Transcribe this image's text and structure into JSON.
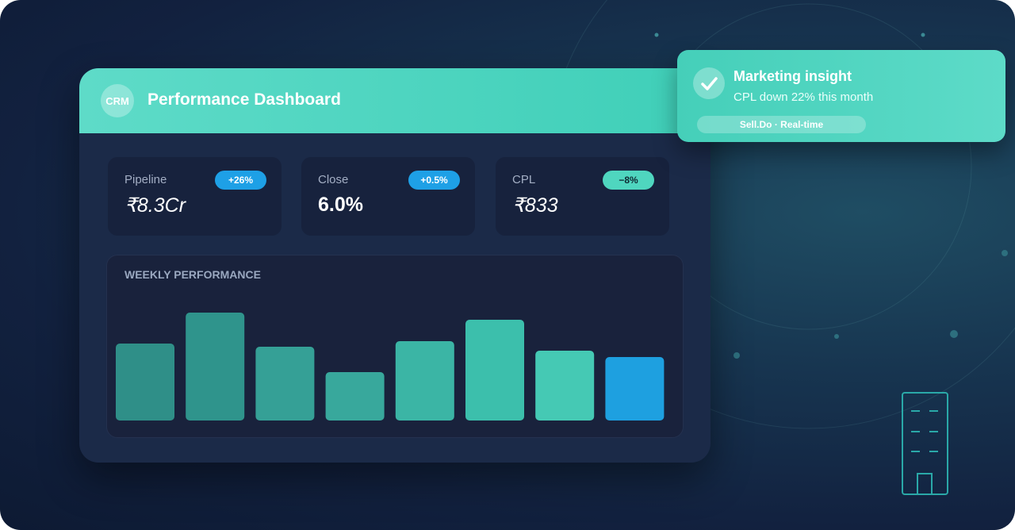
{
  "header": {
    "logo": "CRM",
    "title": "Performance Dashboard"
  },
  "kpis": [
    {
      "label": "Pipeline",
      "value": "₹8.3Cr",
      "badge": "+26%"
    },
    {
      "label": "Close",
      "value": "6.0%",
      "badge": "+0.5%"
    },
    {
      "label": "CPL",
      "value": "₹833",
      "badge": "−8%"
    }
  ],
  "chart_data": {
    "type": "bar",
    "title": "WEEKLY PERFORMANCE",
    "categories": [
      null,
      null,
      null,
      null,
      null,
      null,
      null,
      null
    ],
    "values": [
      97,
      136,
      93,
      61,
      100,
      127,
      88,
      80
    ],
    "colors": [
      "#2f8f88",
      "#2f948c",
      "#35a096",
      "#38a89c",
      "#3bb5a5",
      "#3cbfac",
      "#45c9b4",
      "#1ea0e0"
    ]
  },
  "notification": {
    "title": "Marketing insight",
    "text": "CPL down 22% this month",
    "tag": "Sell.Do · Real-time"
  }
}
